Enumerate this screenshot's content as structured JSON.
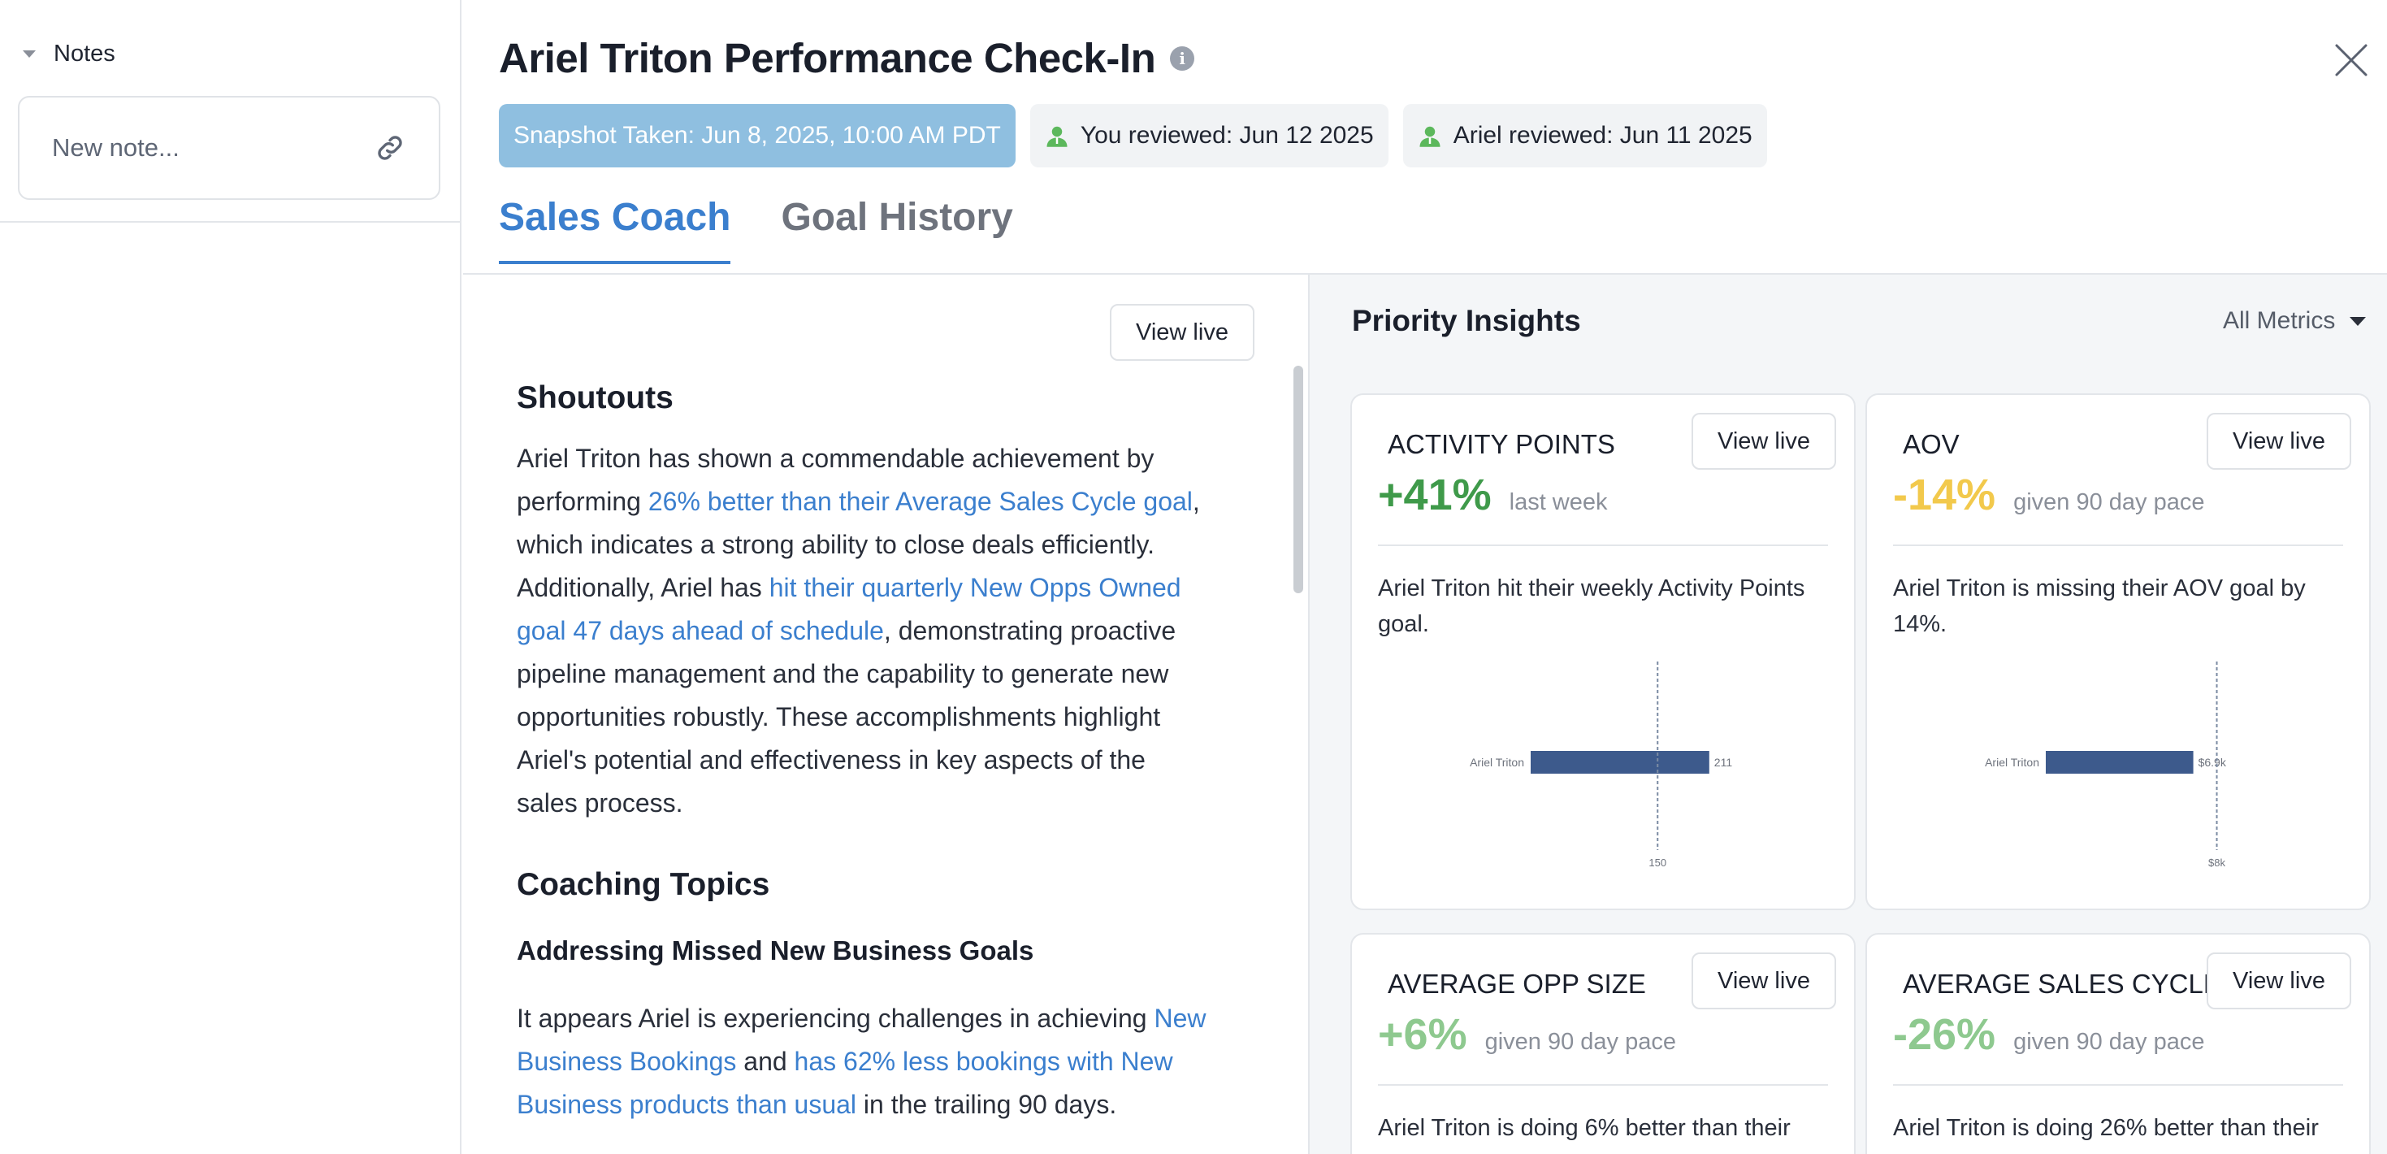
{
  "sidebar": {
    "notes_label": "Notes",
    "note_placeholder": "New note..."
  },
  "header": {
    "title": "Ariel Triton Performance Check-In",
    "badges": {
      "snapshot": "Snapshot Taken: Jun 8, 2025, 10:00 AM PDT",
      "you_reviewed": "You reviewed: Jun 12 2025",
      "ariel_reviewed": "Ariel reviewed: Jun 11 2025"
    },
    "tabs": [
      {
        "label": "Sales Coach",
        "active": true
      },
      {
        "label": "Goal History",
        "active": false
      }
    ]
  },
  "coach": {
    "view_live": "View live",
    "shoutouts_heading": "Shoutouts",
    "shoutouts": [
      {
        "t": "Ariel Triton has shown a commendable achievement by performing ",
        "link": false
      },
      {
        "t": "26% better than their Average Sales Cycle goal",
        "link": true
      },
      {
        "t": ", which indicates a strong ability to close deals efficiently. Additionally, Ariel has ",
        "link": false
      },
      {
        "t": "hit their quarterly New Opps Owned goal 47 days ahead of schedule",
        "link": true
      },
      {
        "t": ", demonstrating proactive pipeline management and the capability to generate new opportunities robustly. These accomplishments highlight Ariel's potential and effectiveness in key aspects of the sales process.",
        "link": false
      }
    ],
    "coaching_heading": "Coaching Topics",
    "topic_heading": "Addressing Missed New Business Goals",
    "topic": [
      {
        "t": "It appears Ariel is experiencing challenges in achieving ",
        "link": false
      },
      {
        "t": "New Business Bookings",
        "link": true
      },
      {
        "t": " and ",
        "link": false
      },
      {
        "t": "has 62% less bookings with New Business products than usual",
        "link": true
      },
      {
        "t": " in the trailing 90 days.",
        "link": false
      }
    ]
  },
  "insights": {
    "title": "Priority Insights",
    "filter": "All Metrics",
    "cards": [
      {
        "name": "ACTIVITY POINTS",
        "value": "+41%",
        "value_color": "#3f9a4a",
        "sub": "last week",
        "text": "Ariel Triton hit their weekly Activity Points goal.",
        "button": "View live",
        "chart_data": {
          "type": "bar",
          "orientation": "horizontal",
          "categories": [
            "Ariel Triton"
          ],
          "values": [
            211
          ],
          "value_labels": [
            "211"
          ],
          "goal": 150,
          "goal_label": "150",
          "xlim": [
            0,
            240
          ],
          "bar_color": "#3d5a8c"
        }
      },
      {
        "name": "AOV",
        "value": "-14%",
        "value_color": "#f2c94c",
        "sub": "given 90 day pace",
        "text": "Ariel Triton is missing their AOV goal by 14%.",
        "button": "View live",
        "chart_data": {
          "type": "bar",
          "orientation": "horizontal",
          "categories": [
            "Ariel Triton"
          ],
          "values": [
            6900
          ],
          "value_labels": [
            "$6.9k"
          ],
          "goal": 8000,
          "goal_label": "$8k",
          "xlim": [
            0,
            9500
          ],
          "bar_color": "#3d5a8c"
        }
      },
      {
        "name": "AVERAGE OPP SIZE",
        "value": "+6%",
        "value_color": "#8ec98f",
        "sub": "given 90 day pace",
        "text": "Ariel Triton is doing 6% better than their",
        "button": "View live"
      },
      {
        "name": "AVERAGE SALES CYCLE",
        "value": "-26%",
        "value_color": "#8ec98f",
        "sub": "given 90 day pace",
        "text": "Ariel Triton is doing 26% better than their",
        "button": "View live"
      }
    ]
  },
  "colors": {
    "accent": "#3b7fce",
    "snapshot_badge": "#8fbfe0",
    "person_icon": "#5cb85c"
  }
}
